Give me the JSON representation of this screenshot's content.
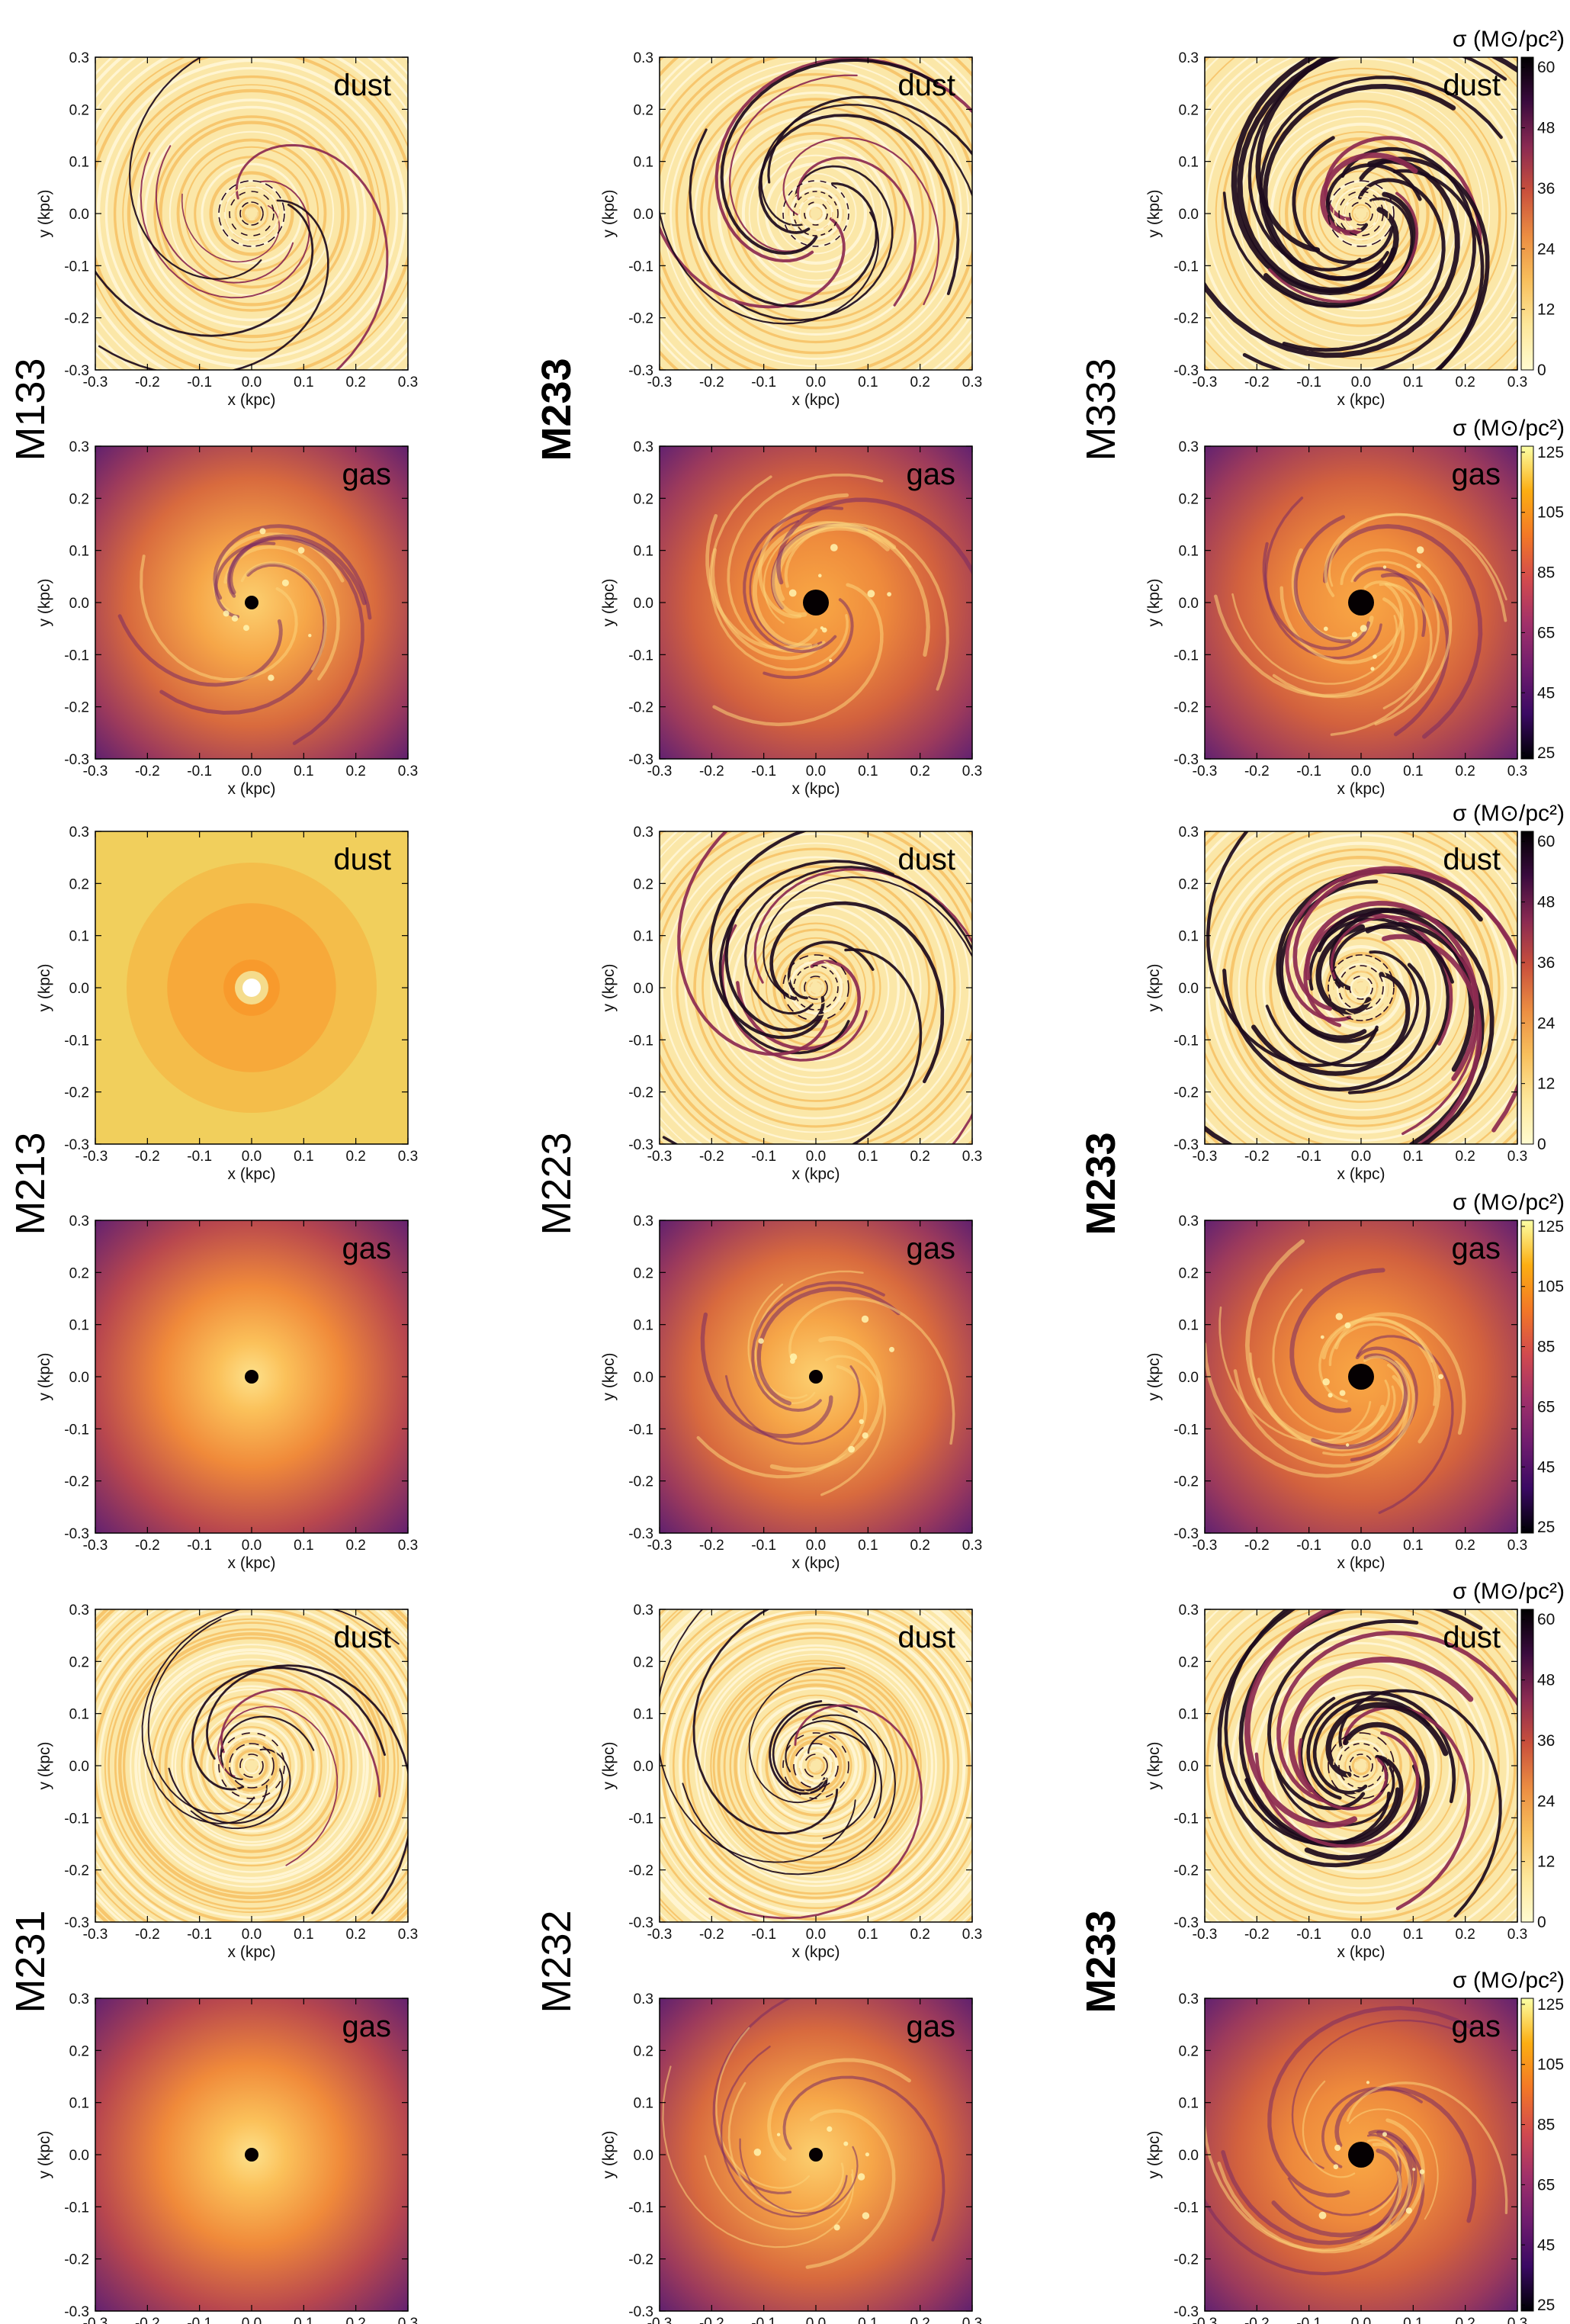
{
  "colors": {
    "dust_cmap": [
      "#fffbd0",
      "#fde79a",
      "#f8bf5c",
      "#eb8d42",
      "#c9503c",
      "#8a2a52",
      "#3a0b3e",
      "#000000"
    ],
    "gas_cmap": [
      "#000004",
      "#3a0963",
      "#6f1c6e",
      "#a0306a",
      "#d24a4e",
      "#f37826",
      "#fcae12",
      "#fcffa4"
    ]
  },
  "chart_data": {
    "type": "heatmap",
    "axes": {
      "xlabel": "x (kpc)",
      "ylabel": "y (kpc)",
      "xlim": [
        -0.3,
        0.3
      ],
      "ylim": [
        -0.3,
        0.3
      ],
      "ticks": [
        "-0.3",
        "-0.2",
        "-0.1",
        "0.0",
        "0.1",
        "0.2",
        "0.3"
      ]
    },
    "colorbars": {
      "dust": {
        "title": "σ (M⊙/pc²)",
        "range": [
          0,
          62
        ],
        "ticks": [
          "0",
          "12",
          "24",
          "36",
          "48",
          "60"
        ],
        "reversed": true
      },
      "gas": {
        "title": "σ (M⊙/pc²)",
        "range": [
          23,
          127
        ],
        "ticks": [
          "25",
          "45",
          "65",
          "85",
          "105",
          "125"
        ]
      }
    },
    "panels": [
      {
        "row": 0,
        "col": 0,
        "model": "M133",
        "component": "dust",
        "tag": "dust",
        "style": "dust-sparse"
      },
      {
        "row": 0,
        "col": 1,
        "model": "M233",
        "component": "dust",
        "tag": "dust",
        "style": "dust-medium"
      },
      {
        "row": 0,
        "col": 2,
        "model": "M333",
        "component": "dust",
        "tag": "dust",
        "style": "dust-dense"
      },
      {
        "row": 1,
        "col": 0,
        "model": "M133",
        "component": "gas",
        "tag": "gas",
        "style": "gas-mild"
      },
      {
        "row": 1,
        "col": 1,
        "model": "M233",
        "component": "gas",
        "tag": "gas",
        "style": "gas-strong"
      },
      {
        "row": 1,
        "col": 2,
        "model": "M333",
        "component": "gas",
        "tag": "gas",
        "style": "gas-strong"
      },
      {
        "row": 2,
        "col": 0,
        "model": "M213",
        "component": "dust",
        "tag": "dust",
        "style": "dust-smooth"
      },
      {
        "row": 2,
        "col": 1,
        "model": "M223",
        "component": "dust",
        "tag": "dust",
        "style": "dust-medium"
      },
      {
        "row": 2,
        "col": 2,
        "model": "M233",
        "component": "dust",
        "tag": "dust",
        "style": "dust-dense"
      },
      {
        "row": 3,
        "col": 0,
        "model": "M213",
        "component": "gas",
        "tag": "gas",
        "style": "gas-smooth"
      },
      {
        "row": 3,
        "col": 1,
        "model": "M223",
        "component": "gas",
        "tag": "gas",
        "style": "gas-mild"
      },
      {
        "row": 3,
        "col": 2,
        "model": "M233",
        "component": "gas",
        "tag": "gas",
        "style": "gas-strong"
      },
      {
        "row": 4,
        "col": 0,
        "model": "M231",
        "component": "dust",
        "tag": "dust",
        "style": "dust-ringed"
      },
      {
        "row": 4,
        "col": 1,
        "model": "M232",
        "component": "dust",
        "tag": "dust",
        "style": "dust-ringed"
      },
      {
        "row": 4,
        "col": 2,
        "model": "M233",
        "component": "dust",
        "tag": "dust",
        "style": "dust-dense"
      },
      {
        "row": 5,
        "col": 0,
        "model": "M231",
        "component": "gas",
        "tag": "gas",
        "style": "gas-smooth"
      },
      {
        "row": 5,
        "col": 1,
        "model": "M232",
        "component": "gas",
        "tag": "gas",
        "style": "gas-mild"
      },
      {
        "row": 5,
        "col": 2,
        "model": "M233",
        "component": "gas",
        "tag": "gas",
        "style": "gas-strong"
      }
    ],
    "model_labels": [
      {
        "col": 0,
        "pair": 0,
        "text": "M133",
        "bold": false
      },
      {
        "col": 1,
        "pair": 0,
        "text": "M233",
        "bold": true
      },
      {
        "col": 2,
        "pair": 0,
        "text": "M333",
        "bold": false
      },
      {
        "col": 0,
        "pair": 1,
        "text": "M213",
        "bold": false
      },
      {
        "col": 1,
        "pair": 1,
        "text": "M223",
        "bold": false
      },
      {
        "col": 2,
        "pair": 1,
        "text": "M233",
        "bold": true
      },
      {
        "col": 0,
        "pair": 2,
        "text": "M231",
        "bold": false
      },
      {
        "col": 1,
        "pair": 2,
        "text": "M232",
        "bold": false
      },
      {
        "col": 2,
        "pair": 2,
        "text": "M233",
        "bold": true
      }
    ]
  }
}
